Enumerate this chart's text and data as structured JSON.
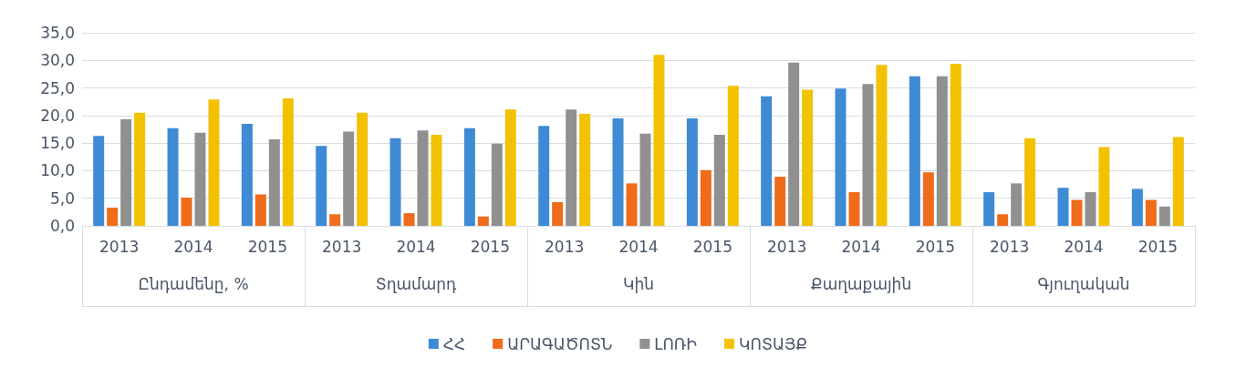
{
  "chart_data": {
    "type": "bar",
    "categories": [
      "2013",
      "2014",
      "2015",
      "2013",
      "2014",
      "2015",
      "2013",
      "2014",
      "2015",
      "2013",
      "2014",
      "2015",
      "2013",
      "2014",
      "2015"
    ],
    "annotations": [
      "Ընդամենը, %",
      "Տղամարդ",
      "Կին",
      "Քաղաքային",
      "Գյուղական"
    ],
    "series": [
      {
        "name": "ՀՀ",
        "color": "#3f8ad4",
        "values": [
          16.3,
          17.7,
          18.5,
          14.5,
          15.9,
          17.7,
          18.1,
          19.5,
          19.5,
          23.5,
          24.9,
          27.1,
          6.1,
          6.9,
          6.7
        ]
      },
      {
        "name": "ԱՐԱԳԱԾՈՏՆ",
        "color": "#ee6c1a",
        "values": [
          3.3,
          5.1,
          5.7,
          2.1,
          2.3,
          1.7,
          4.3,
          7.7,
          10.1,
          8.9,
          6.1,
          9.7,
          2.1,
          4.7,
          4.7
        ]
      },
      {
        "name": "ԼՈՌԻ",
        "color": "#909090",
        "values": [
          19.3,
          16.9,
          15.7,
          17.1,
          17.3,
          14.9,
          21.1,
          16.7,
          16.5,
          29.6,
          25.7,
          27.1,
          7.7,
          6.1,
          3.5
        ]
      },
      {
        "name": "ԿՈՏԱՅՔ",
        "color": "#f2c200",
        "values": [
          20.5,
          22.9,
          23.1,
          20.5,
          16.5,
          21.1,
          20.3,
          31.0,
          25.4,
          24.7,
          29.2,
          29.4,
          15.9,
          14.3,
          16.1
        ]
      }
    ],
    "ylim": [
      0,
      35
    ],
    "yticks": [
      {
        "value": 0,
        "label": "0,0"
      },
      {
        "value": 5,
        "label": "5,0"
      },
      {
        "value": 10,
        "label": "10,0"
      },
      {
        "value": 15,
        "label": "15,0"
      },
      {
        "value": 20,
        "label": "20,0"
      },
      {
        "value": 25,
        "label": "25,0"
      },
      {
        "value": 30,
        "label": "30,0"
      },
      {
        "value": 35,
        "label": "35,0"
      }
    ],
    "grid": "y",
    "legend": "bottom"
  }
}
